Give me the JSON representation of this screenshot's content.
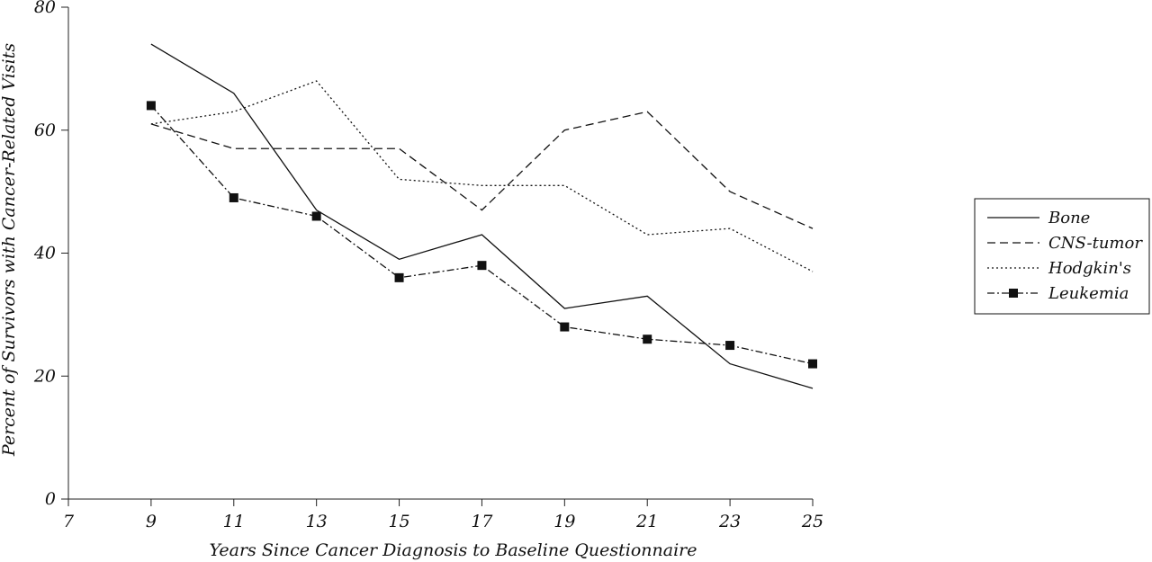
{
  "chart_data": {
    "type": "line",
    "title": "",
    "xlabel": "Years Since Cancer Diagnosis to Baseline Questionnaire",
    "ylabel": "Percent of Survivors with Cancer-Related Visits",
    "x": [
      9,
      11,
      13,
      15,
      17,
      19,
      21,
      23,
      25
    ],
    "xlim": [
      7,
      25
    ],
    "ylim": [
      0,
      80
    ],
    "x_ticks": [
      7,
      9,
      11,
      13,
      15,
      17,
      19,
      21,
      23,
      25
    ],
    "y_ticks": [
      0,
      20,
      40,
      60,
      80
    ],
    "grid": false,
    "legend_position": "right",
    "series": [
      {
        "name": "Bone",
        "style": "solid",
        "color": "#111111",
        "values": [
          74,
          66,
          47,
          39,
          43,
          31,
          33,
          22,
          18
        ]
      },
      {
        "name": "CNS-tumor",
        "style": "dashed",
        "color": "#111111",
        "values": [
          61,
          57,
          57,
          57,
          47,
          60,
          63,
          50,
          44
        ]
      },
      {
        "name": "Hodgkin's",
        "style": "dotted",
        "color": "#111111",
        "values": [
          61,
          63,
          68,
          52,
          51,
          51,
          43,
          44,
          37
        ]
      },
      {
        "name": "Leukemia",
        "style": "dashdot-square",
        "color": "#111111",
        "values": [
          64,
          49,
          46,
          36,
          38,
          28,
          26,
          25,
          22
        ]
      }
    ]
  }
}
